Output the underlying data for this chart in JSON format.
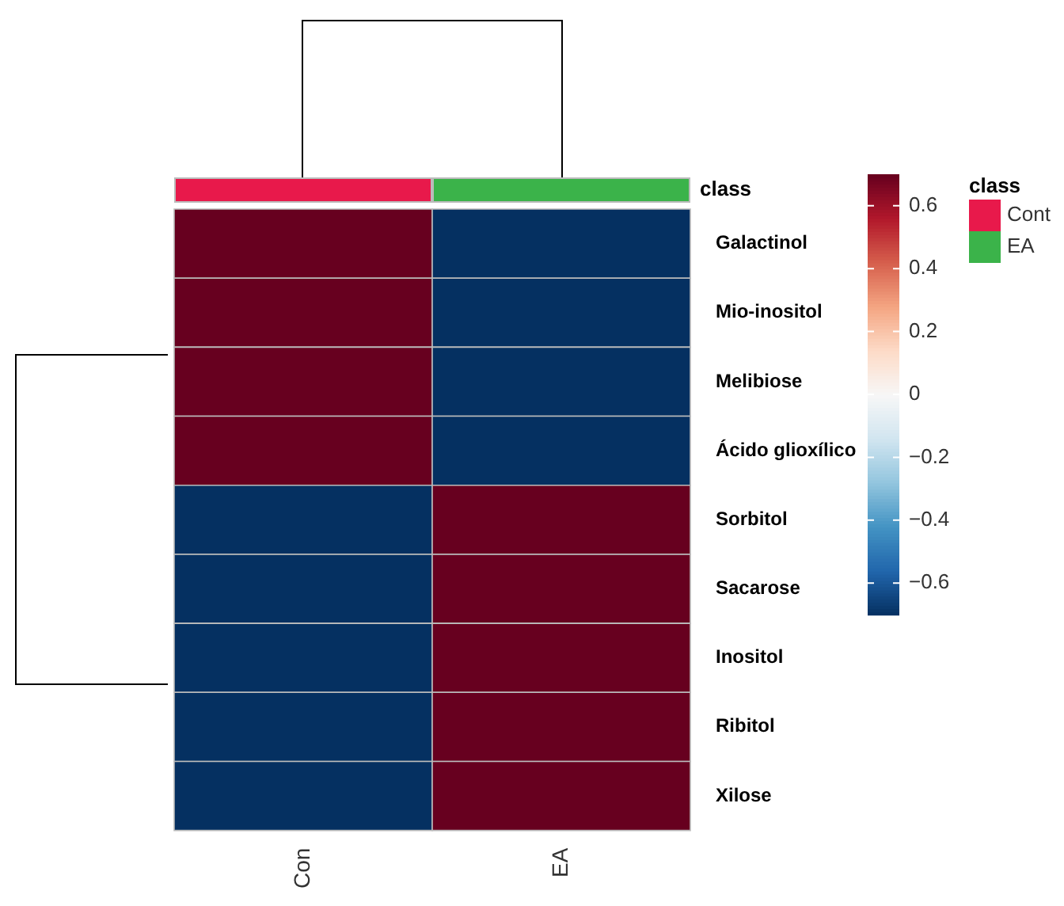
{
  "chart_data": {
    "type": "heatmap",
    "categories": [
      "Con",
      "EA"
    ],
    "y_categories": [
      "Galactinol",
      "Mio-inositol",
      "Melibiose",
      "Ácido glioxílico",
      "Sorbitol",
      "Sacarose",
      "Inositol",
      "Ribitol",
      "Xilose"
    ],
    "cells": [
      [
        0.7,
        -0.7
      ],
      [
        0.7,
        -0.7
      ],
      [
        0.7,
        -0.7
      ],
      [
        0.7,
        -0.7
      ],
      [
        -0.7,
        0.7
      ],
      [
        -0.7,
        0.7
      ],
      [
        -0.7,
        0.7
      ],
      [
        -0.7,
        0.7
      ],
      [
        -0.7,
        0.7
      ]
    ],
    "clim": [
      -0.7,
      0.7
    ],
    "cticks": [
      {
        "value": -0.6,
        "label": "−0.6"
      },
      {
        "value": -0.4,
        "label": "−0.4"
      },
      {
        "value": -0.2,
        "label": "−0.2"
      },
      0,
      0.2,
      0.4,
      0.6
    ],
    "annotations": [
      "class",
      "class",
      "Cont",
      "EA"
    ]
  }
}
